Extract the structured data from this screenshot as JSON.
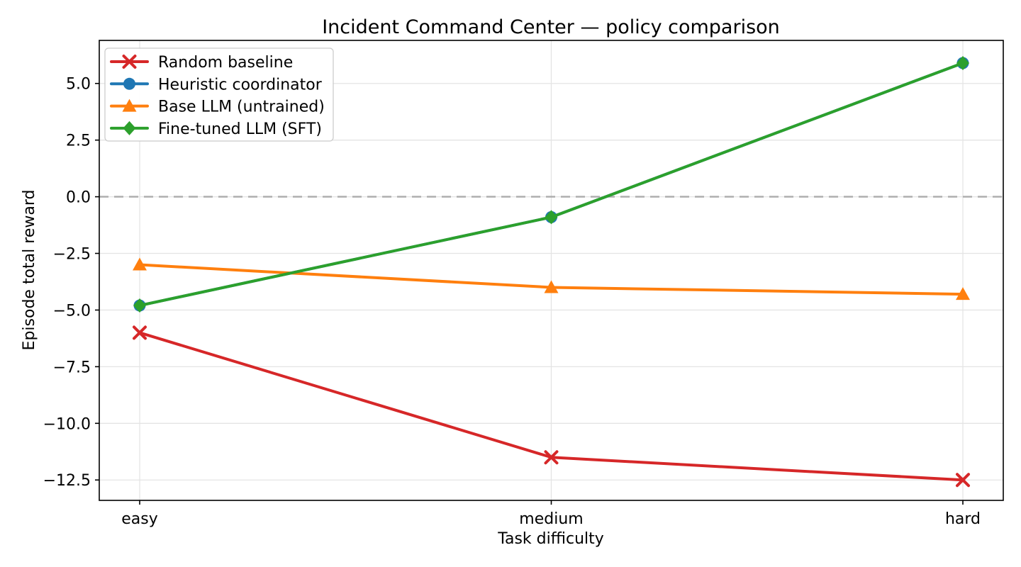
{
  "chart_data": {
    "type": "line",
    "title": "Incident Command Center — policy comparison",
    "xlabel": "Task difficulty",
    "ylabel": "Episode total reward",
    "categories": [
      "easy",
      "medium",
      "hard"
    ],
    "series": [
      {
        "name": "Random baseline",
        "color": "#d62728",
        "marker": "x",
        "values": [
          -6.0,
          -11.5,
          -12.5
        ]
      },
      {
        "name": "Heuristic coordinator",
        "color": "#1f77b4",
        "marker": "circle",
        "values": [
          -4.8,
          -0.9,
          5.9
        ]
      },
      {
        "name": "Base LLM (untrained)",
        "color": "#ff7f0e",
        "marker": "triangle",
        "values": [
          -3.0,
          -4.0,
          -4.3
        ]
      },
      {
        "name": "Fine-tuned LLM (SFT)",
        "color": "#2ca02c",
        "marker": "diamond",
        "values": [
          -4.8,
          -0.9,
          5.9
        ]
      }
    ],
    "y_ticks": [
      5.0,
      2.5,
      0.0,
      -2.5,
      -5.0,
      -7.5,
      -10.0,
      -12.5
    ],
    "y_tick_labels": [
      "5.0",
      "2.5",
      "0.0",
      "−2.5",
      "−5.0",
      "−7.5",
      "−10.0",
      "−12.5"
    ],
    "ylim": [
      -13.4,
      6.9
    ],
    "grid": true,
    "legend_position": "upper left",
    "reference_line": {
      "y": 0.0,
      "style": "dashed",
      "color": "#ababab"
    },
    "colors": {
      "grid": "#e4e4e4",
      "spine": "#000000",
      "legend_border": "#cccccc",
      "legend_bg": "#ffffff"
    }
  }
}
